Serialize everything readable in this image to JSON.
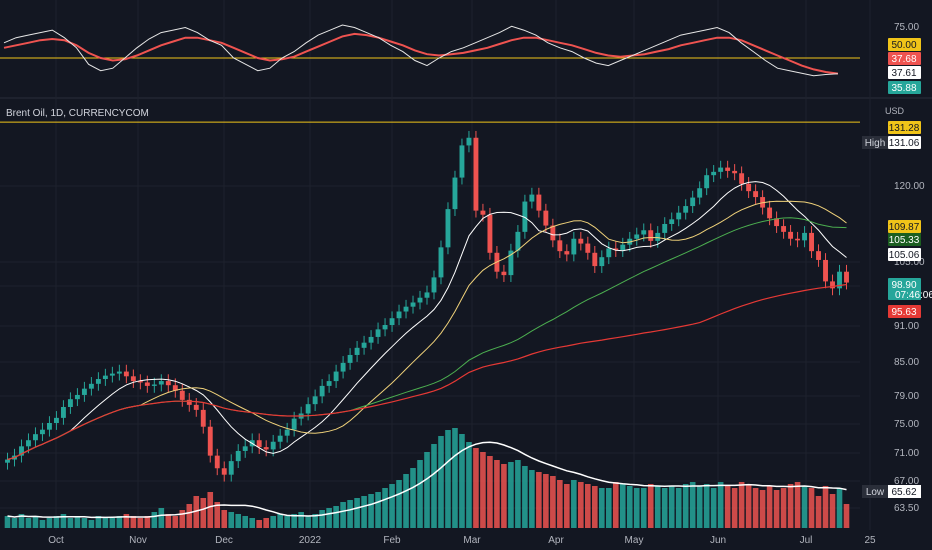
{
  "symbol": "Brent Oil, 1D, CURRENCYCOM",
  "currency": "USD",
  "colors": {
    "background": "#131722",
    "up": "#26a69a",
    "down": "#ef5350",
    "sma_fast": "#ffffff",
    "sma_mid": "#f0d27a",
    "sma_slow": "#4caf50",
    "sma_long": "#e53935",
    "rsi_line": "#e6e6e6",
    "rsi_ma": "#ef5350",
    "high_line": "#f0c419",
    "rsi_level": "#f0c419"
  },
  "chart_data": [
    {
      "type": "line",
      "panel": "rsi",
      "y_ticks": [
        "75.00"
      ],
      "ylim": [
        20,
        85
      ],
      "level": 50,
      "tags": [
        {
          "text": "50.00",
          "bg": "#f0c419",
          "fg": "#131722",
          "value": 50.0
        },
        {
          "text": "37.68",
          "bg": "#ef5350",
          "fg": "#ffffff",
          "value": 37.68
        },
        {
          "text": "37.61",
          "bg": "#ffffff",
          "fg": "#131722",
          "value": 37.61
        },
        {
          "text": "35.88",
          "bg": "#26a69a",
          "fg": "#ffffff",
          "value": 35.88
        }
      ],
      "series": [
        {
          "values": [
            62,
            66,
            68,
            70,
            72,
            66,
            58,
            45,
            40,
            42,
            50,
            58,
            65,
            70,
            72,
            74,
            70,
            64,
            60,
            50,
            45,
            40,
            42,
            50,
            55,
            62,
            68,
            72,
            76,
            74,
            70,
            66,
            60,
            55,
            48,
            44,
            50,
            55,
            58,
            62,
            66,
            70,
            75,
            72,
            68,
            62,
            58,
            55,
            50,
            46,
            44,
            48,
            52,
            56,
            60,
            64,
            68,
            70,
            72,
            74,
            70,
            62,
            55,
            48,
            42,
            40,
            38,
            36,
            37,
            37.6
          ]
        },
        {
          "values": [
            58,
            60,
            62,
            64,
            65,
            64,
            60,
            54,
            50,
            48,
            49,
            52,
            56,
            60,
            63,
            66,
            66,
            64,
            62,
            58,
            54,
            50,
            48,
            49,
            51,
            55,
            59,
            63,
            67,
            69,
            68,
            66,
            63,
            60,
            56,
            53,
            52,
            53,
            54,
            56,
            58,
            61,
            64,
            66,
            66,
            64,
            62,
            60,
            57,
            54,
            52,
            51,
            52,
            53,
            55,
            57,
            60,
            62,
            64,
            66,
            66,
            64,
            60,
            56,
            52,
            48,
            44,
            41,
            39,
            37.7
          ]
        }
      ]
    },
    {
      "type": "candlestick",
      "panel": "price",
      "y_ticks": [
        "120.00",
        "105.00",
        "98.00",
        "91.00",
        "85.00",
        "79.00",
        "75.00",
        "71.00",
        "67.00",
        "63.50"
      ],
      "x_ticks": [
        "Oct",
        "Nov",
        "Dec",
        "2022",
        "Feb",
        "Mar",
        "Apr",
        "May",
        "Jun",
        "Jul",
        "25"
      ],
      "high_level": 131.06,
      "high_label": "High",
      "low_label": "Low",
      "low_value": "65.62",
      "tags": [
        {
          "text": "131.28",
          "bg": "#f0c419",
          "fg": "#131722",
          "value": 131.28
        },
        {
          "text": "131.06",
          "bg": "#ffffff",
          "fg": "#131722",
          "value": 131.06
        },
        {
          "text": "109.87",
          "bg": "#f0c419",
          "fg": "#131722",
          "value": 109.87
        },
        {
          "text": "105.33",
          "bg": "#1b5e20",
          "fg": "#ffffff",
          "value": 105.33
        },
        {
          "text": "105.06",
          "bg": "#ffffff",
          "fg": "#131722",
          "value": 105.06
        },
        {
          "text": "98.90",
          "bg": "#26a69a",
          "fg": "#ffffff",
          "value": 98.9,
          "sub": "07:46:06"
        },
        {
          "text": "95.63",
          "bg": "#e53935",
          "fg": "#ffffff",
          "value": 95.63
        }
      ],
      "close": [
        72.5,
        73.0,
        74.2,
        75.0,
        75.8,
        76.4,
        77.3,
        78.0,
        79.5,
        80.6,
        81.2,
        82.1,
        82.8,
        83.5,
        84.0,
        84.3,
        84.6,
        83.9,
        83.2,
        83.0,
        82.5,
        82.7,
        83.2,
        82.6,
        81.8,
        80.5,
        79.8,
        79.1,
        76.8,
        73.0,
        71.4,
        70.6,
        72.3,
        73.6,
        74.2,
        75.0,
        74.1,
        73.8,
        74.8,
        75.6,
        76.4,
        77.9,
        78.6,
        79.9,
        81.0,
        82.5,
        83.2,
        84.6,
        85.9,
        87.1,
        88.2,
        89.0,
        89.9,
        91.1,
        91.8,
        92.9,
        94.0,
        94.8,
        95.5,
        96.3,
        97.2,
        99.8,
        105.2,
        112.5,
        118.9,
        125.8,
        127.5,
        112.2,
        111.4,
        104.2,
        100.8,
        100.2,
        104.6,
        108.1,
        114.0,
        115.4,
        112.2,
        109.3,
        106.5,
        104.5,
        103.9,
        106.8,
        105.9,
        104.2,
        101.8,
        103.4,
        105.0,
        104.7,
        105.7,
        106.8,
        107.6,
        108.4,
        106.4,
        107.9,
        109.6,
        110.5,
        111.8,
        113.1,
        114.8,
        116.7,
        119.4,
        120.1,
        121.0,
        120.3,
        119.8,
        117.6,
        116.1,
        114.9,
        112.8,
        110.7,
        109.2,
        108.1,
        106.8,
        106.5,
        107.9,
        104.5,
        102.9,
        99.1,
        97.9,
        100.8,
        98.9
      ],
      "volume": [
        0.6,
        0.5,
        0.7,
        0.5,
        0.6,
        0.4,
        0.5,
        0.6,
        0.7,
        0.5,
        0.6,
        0.5,
        0.4,
        0.6,
        0.5,
        0.5,
        0.6,
        0.7,
        0.6,
        0.5,
        0.6,
        0.8,
        1.0,
        0.7,
        0.6,
        0.9,
        1.2,
        1.6,
        1.5,
        1.8,
        1.3,
        0.9,
        0.8,
        0.7,
        0.6,
        0.5,
        0.4,
        0.5,
        0.6,
        0.7,
        0.6,
        0.7,
        0.8,
        0.6,
        0.7,
        0.9,
        1.0,
        1.1,
        1.3,
        1.4,
        1.5,
        1.6,
        1.7,
        1.8,
        2.0,
        2.2,
        2.4,
        2.7,
        3.0,
        3.4,
        3.8,
        4.2,
        4.6,
        4.9,
        5.0,
        4.7,
        4.3,
        4.0,
        3.8,
        3.6,
        3.4,
        3.2,
        3.3,
        3.4,
        3.1,
        2.9,
        2.8,
        2.7,
        2.6,
        2.4,
        2.2,
        2.4,
        2.3,
        2.2,
        2.1,
        2.0,
        2.0,
        2.3,
        2.2,
        2.1,
        2.0,
        2.0,
        2.2,
        2.1,
        2.0,
        2.1,
        2.0,
        2.2,
        2.3,
        2.1,
        2.2,
        2.0,
        2.3,
        2.1,
        2.0,
        2.3,
        2.2,
        2.0,
        1.9,
        2.1,
        1.9,
        2.0,
        2.2,
        2.3,
        2.1,
        2.0,
        1.6,
        2.1,
        1.7,
        2.0,
        1.2
      ]
    }
  ]
}
